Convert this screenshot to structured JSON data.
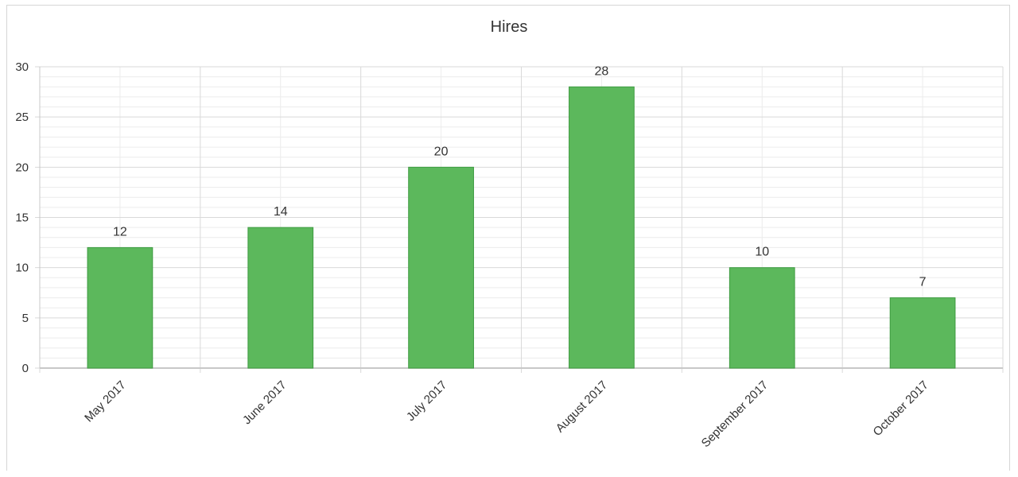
{
  "chart_data": {
    "type": "bar",
    "title": "Hires",
    "xlabel": "",
    "ylabel": "",
    "categories": [
      "May 2017",
      "June 2017",
      "July 2017",
      "August 2017",
      "September 2017",
      "October 2017"
    ],
    "values": [
      12,
      14,
      20,
      28,
      10,
      7
    ],
    "yticks": [
      0,
      5,
      10,
      15,
      20,
      25,
      30
    ],
    "ylim": [
      0,
      30
    ],
    "grid": true,
    "legend": "none",
    "colors": {
      "bar": "#5cb85c",
      "bar_border": "#3e9b41",
      "grid_major": "#d9d9d9",
      "grid_minor": "#ececec",
      "axis": "#c8c8c8",
      "text": "#333333"
    }
  }
}
